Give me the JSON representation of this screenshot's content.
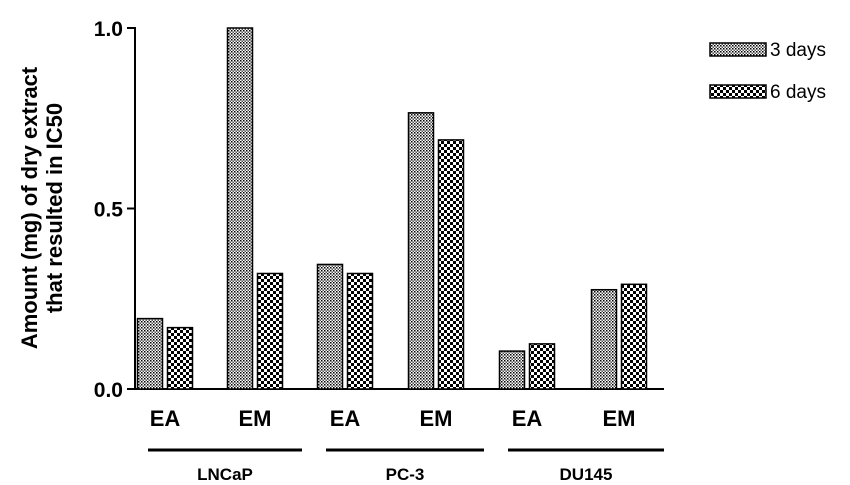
{
  "chart_data": {
    "type": "bar",
    "categories": [
      "EA",
      "EM",
      "EA",
      "EM",
      "EA",
      "EM"
    ],
    "groups": [
      {
        "label": "LNCaP",
        "members": [
          0,
          1
        ]
      },
      {
        "label": "PC-3",
        "members": [
          2,
          3
        ]
      },
      {
        "label": "DU145",
        "members": [
          4,
          5
        ]
      }
    ],
    "series": [
      {
        "name": "3 days",
        "values": [
          0.195,
          1.0,
          0.345,
          0.765,
          0.105,
          0.275
        ],
        "pattern": "dense-crosshatch"
      },
      {
        "name": "6 days",
        "values": [
          0.17,
          0.32,
          0.32,
          0.69,
          0.125,
          0.29
        ],
        "pattern": "checkerboard"
      }
    ],
    "ylabel_lines": [
      "Amount (mg) of dry extract",
      "that resulted in IC50"
    ],
    "ylim": [
      0,
      1.0
    ],
    "yticks": [
      {
        "value": 0.0,
        "label": "0.0"
      },
      {
        "value": 0.5,
        "label": "0.5"
      },
      {
        "value": 1.0,
        "label": "1.0"
      }
    ],
    "grid": false,
    "legend_position": "top-right",
    "colors": {
      "bar_fg": "#000000",
      "bar_bg": "#ffffff",
      "axis": "#000000"
    }
  }
}
